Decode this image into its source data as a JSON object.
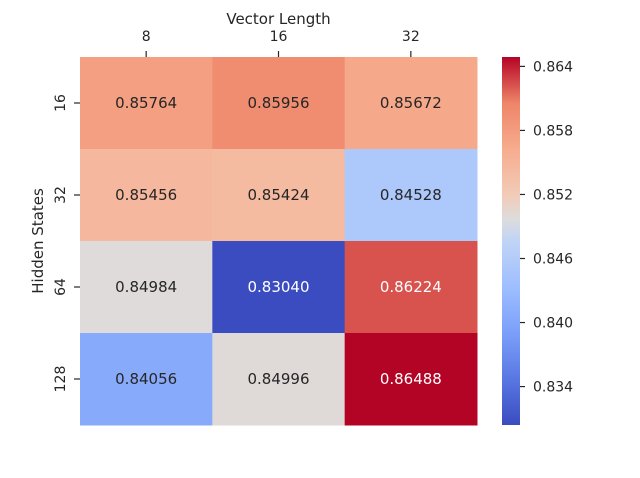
{
  "chart_data": {
    "type": "heatmap",
    "xlabel": "Vector Length",
    "ylabel": "Hidden States",
    "x_categories": [
      "8",
      "16",
      "32"
    ],
    "y_categories": [
      "16",
      "32",
      "64",
      "128"
    ],
    "values": [
      [
        0.85764,
        0.85956,
        0.85672
      ],
      [
        0.85456,
        0.85424,
        0.84528
      ],
      [
        0.84984,
        0.8304,
        0.86224
      ],
      [
        0.84056,
        0.84996,
        0.86488
      ]
    ],
    "cell_labels": [
      [
        "0.85764",
        "0.85956",
        "0.85672"
      ],
      [
        "0.85456",
        "0.85424",
        "0.84528"
      ],
      [
        "0.84984",
        "0.83040",
        "0.86224"
      ],
      [
        "0.84056",
        "0.84996",
        "0.86488"
      ]
    ],
    "colormap": "coolwarm",
    "color_range": [
      0.8304,
      0.86488
    ],
    "colorbar_ticks": [
      "0.864",
      "0.858",
      "0.852",
      "0.846",
      "0.840",
      "0.834"
    ],
    "colorbar_tick_values": [
      0.864,
      0.858,
      0.852,
      0.846,
      0.84,
      0.834
    ],
    "x_axis_position": "top"
  }
}
